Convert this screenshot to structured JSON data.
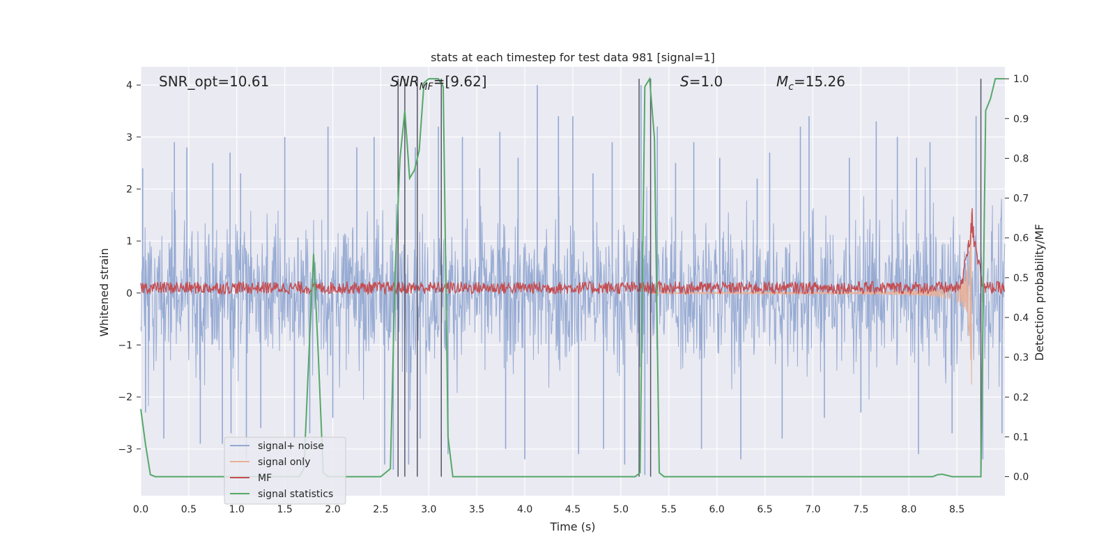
{
  "chart_data": {
    "type": "line",
    "title": "stats at each timestep for test data 981 [signal=1]",
    "xlabel": "Time (s)",
    "ylabel_left": "Whitened strain",
    "ylabel_right": "Detection probability/MF",
    "xlim": [
      0.0,
      9.0
    ],
    "ylim_left": [
      -3.9,
      4.35
    ],
    "ylim_right": [
      -0.048,
      1.03
    ],
    "x_ticks": [
      "0.0",
      "0.5",
      "1.0",
      "1.5",
      "2.0",
      "2.5",
      "3.0",
      "3.5",
      "4.0",
      "4.5",
      "5.0",
      "5.5",
      "6.0",
      "6.5",
      "7.0",
      "7.5",
      "8.0",
      "8.5"
    ],
    "x_tick_values": [
      0.0,
      0.5,
      1.0,
      1.5,
      2.0,
      2.5,
      3.0,
      3.5,
      4.0,
      4.5,
      5.0,
      5.5,
      6.0,
      6.5,
      7.0,
      7.5,
      8.0,
      8.5
    ],
    "y_left_ticks": [
      "4",
      "3",
      "2",
      "1",
      "0",
      "−1",
      "−2",
      "−3"
    ],
    "y_left_tick_values": [
      4,
      3,
      2,
      1,
      0,
      -1,
      -2,
      -3
    ],
    "y_right_ticks": [
      "1.0",
      "0.9",
      "0.8",
      "0.7",
      "0.6",
      "0.5",
      "0.4",
      "0.3",
      "0.2",
      "0.1",
      "0.0"
    ],
    "y_right_tick_values": [
      1.0,
      0.9,
      0.8,
      0.7,
      0.6,
      0.5,
      0.4,
      0.3,
      0.2,
      0.1,
      0.0
    ],
    "grid": true,
    "legend_position": "lower-left",
    "annotations": {
      "snr_opt": "SNR_opt=10.61",
      "snr_mf_sym": "SNR",
      "snr_mf_sub": "MF",
      "snr_mf_val": "=[9.62]",
      "s_sym": "S",
      "s_val": "=1.0",
      "mc_sym": "M",
      "mc_sub": "c",
      "mc_val": "=15.26"
    },
    "detection_lines_x": [
      2.68,
      2.75,
      2.88,
      3.13,
      5.19,
      5.31,
      8.75
    ],
    "series": [
      {
        "name": "signal+ noise",
        "color": "#92a8d1",
        "kind": "noise",
        "amplitude_envelope_max": 3.8,
        "spikes": [
          [
            0.02,
            2.4
          ],
          [
            0.05,
            -2.3
          ],
          [
            0.24,
            -2.8
          ],
          [
            0.35,
            2.9
          ],
          [
            0.48,
            2.8
          ],
          [
            0.62,
            -2.9
          ],
          [
            0.75,
            2.5
          ],
          [
            0.85,
            -2.9
          ],
          [
            0.93,
            2.7
          ],
          [
            0.94,
            -2.7
          ],
          [
            1.04,
            2.3
          ],
          [
            1.1,
            -3.2
          ],
          [
            1.25,
            -2.6
          ],
          [
            1.5,
            3.0
          ],
          [
            1.6,
            -2.8
          ],
          [
            1.76,
            -2.7
          ],
          [
            1.95,
            3.2
          ],
          [
            2.0,
            -2.4
          ],
          [
            2.25,
            2.8
          ],
          [
            2.43,
            3.0
          ],
          [
            2.54,
            -3.3
          ],
          [
            2.63,
            -3.4
          ],
          [
            2.68,
            3.5
          ],
          [
            2.79,
            -3.3
          ],
          [
            2.86,
            2.8
          ],
          [
            2.91,
            -2.8
          ],
          [
            3.1,
            3.2
          ],
          [
            3.2,
            -3.1
          ],
          [
            3.35,
            3.0
          ],
          [
            3.53,
            2.4
          ],
          [
            3.74,
            3.1
          ],
          [
            3.8,
            -3.0
          ],
          [
            3.93,
            2.6
          ],
          [
            4.0,
            -3.2
          ],
          [
            4.13,
            4.0
          ],
          [
            4.35,
            3.4
          ],
          [
            4.5,
            3.4
          ],
          [
            4.56,
            -3.1
          ],
          [
            4.71,
            2.3
          ],
          [
            4.82,
            -3.0
          ],
          [
            4.91,
            2.9
          ],
          [
            5.04,
            -3.3
          ],
          [
            5.21,
            4.0
          ],
          [
            5.25,
            -3.5
          ],
          [
            5.38,
            3.2
          ],
          [
            5.57,
            2.5
          ],
          [
            5.76,
            2.9
          ],
          [
            5.84,
            -3.0
          ],
          [
            6.03,
            2.6
          ],
          [
            6.25,
            -3.2
          ],
          [
            6.42,
            2.2
          ],
          [
            6.55,
            2.7
          ],
          [
            6.68,
            -2.8
          ],
          [
            6.87,
            3.2
          ],
          [
            6.96,
            3.4
          ],
          [
            7.12,
            -2.4
          ],
          [
            7.38,
            2.6
          ],
          [
            7.5,
            -2.3
          ],
          [
            7.66,
            3.3
          ],
          [
            7.88,
            3.0
          ],
          [
            8.08,
            2.6
          ],
          [
            8.1,
            -3.1
          ],
          [
            8.22,
            2.9
          ],
          [
            8.45,
            -2.7
          ],
          [
            8.7,
            3.4
          ],
          [
            8.77,
            -3.2
          ],
          [
            8.97,
            -2.7
          ]
        ]
      },
      {
        "name": "signal only",
        "color": "#e9b097",
        "kind": "chirp",
        "start_x": 5.3,
        "peak_x": 8.66,
        "peak_amplitude": 1.8
      },
      {
        "name": "MF",
        "color": "#c44e52",
        "kind": "band",
        "center": 0.1,
        "amplitude": 0.15,
        "peak_x": 8.66,
        "peak_value": 1.65
      },
      {
        "name": "signal statistics",
        "color": "#55a868",
        "kind": "probability",
        "x": [
          0.0,
          0.05,
          0.1,
          0.15,
          1.65,
          1.7,
          1.75,
          1.8,
          1.85,
          1.9,
          1.95,
          2.5,
          2.55,
          2.6,
          2.65,
          2.7,
          2.75,
          2.8,
          2.85,
          2.9,
          2.95,
          3.0,
          3.05,
          3.1,
          3.15,
          3.2,
          3.25,
          3.3,
          5.15,
          5.2,
          5.25,
          5.3,
          5.35,
          5.4,
          5.45,
          5.5,
          8.25,
          8.3,
          8.35,
          8.4,
          8.45,
          8.5,
          8.6,
          8.7,
          8.75,
          8.8,
          8.85,
          8.9,
          8.95,
          9.0
        ],
        "y": [
          0.17,
          0.08,
          0.005,
          0.0,
          0.0,
          0.02,
          0.3,
          0.56,
          0.3,
          0.01,
          0.0,
          0.0,
          0.01,
          0.02,
          0.52,
          0.8,
          0.92,
          0.75,
          0.77,
          0.82,
          0.99,
          1.0,
          1.0,
          1.0,
          0.98,
          0.1,
          0.0,
          0.0,
          0.0,
          0.01,
          0.98,
          1.0,
          0.85,
          0.01,
          0.0,
          0.0,
          0.0,
          0.005,
          0.006,
          0.003,
          0.0,
          0.0,
          0.0,
          0.0,
          0.0,
          0.92,
          0.95,
          1.0,
          1.0,
          1.0
        ]
      }
    ]
  }
}
